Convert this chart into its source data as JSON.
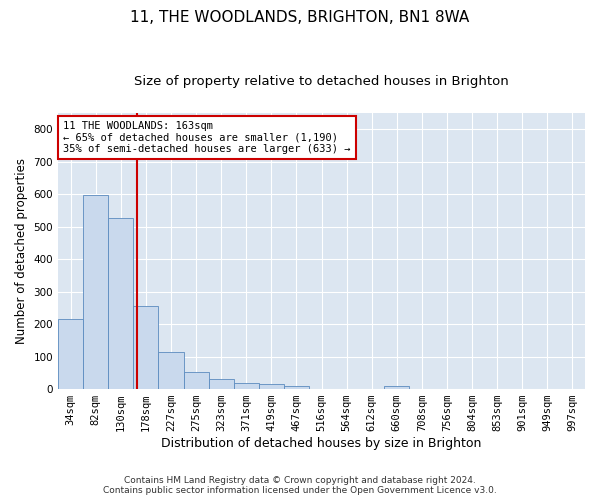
{
  "title": "11, THE WOODLANDS, BRIGHTON, BN1 8WA",
  "subtitle": "Size of property relative to detached houses in Brighton",
  "xlabel": "Distribution of detached houses by size in Brighton",
  "ylabel": "Number of detached properties",
  "footer_line1": "Contains HM Land Registry data © Crown copyright and database right 2024.",
  "footer_line2": "Contains public sector information licensed under the Open Government Licence v3.0.",
  "bar_labels": [
    "34sqm",
    "82sqm",
    "130sqm",
    "178sqm",
    "227sqm",
    "275sqm",
    "323sqm",
    "371sqm",
    "419sqm",
    "467sqm",
    "516sqm",
    "564sqm",
    "612sqm",
    "660sqm",
    "708sqm",
    "756sqm",
    "804sqm",
    "853sqm",
    "901sqm",
    "949sqm",
    "997sqm"
  ],
  "bar_values": [
    215,
    598,
    525,
    255,
    115,
    52,
    30,
    18,
    15,
    10,
    0,
    0,
    0,
    10,
    0,
    0,
    0,
    0,
    0,
    0,
    0
  ],
  "bar_color": "#c9d9ed",
  "bar_edge_color": "#5b8bbf",
  "background_color": "#dce6f1",
  "grid_color": "#ffffff",
  "vline_x": 2.65,
  "vline_color": "#cc0000",
  "annotation_text": "11 THE WOODLANDS: 163sqm\n← 65% of detached houses are smaller (1,190)\n35% of semi-detached houses are larger (633) →",
  "annotation_box_color": "#ffffff",
  "annotation_box_edge": "#cc0000",
  "ylim": [
    0,
    850
  ],
  "yticks": [
    0,
    100,
    200,
    300,
    400,
    500,
    600,
    700,
    800
  ],
  "title_fontsize": 11,
  "subtitle_fontsize": 9.5,
  "xlabel_fontsize": 9,
  "ylabel_fontsize": 8.5,
  "tick_fontsize": 7.5,
  "annotation_fontsize": 7.5,
  "footer_fontsize": 6.5
}
